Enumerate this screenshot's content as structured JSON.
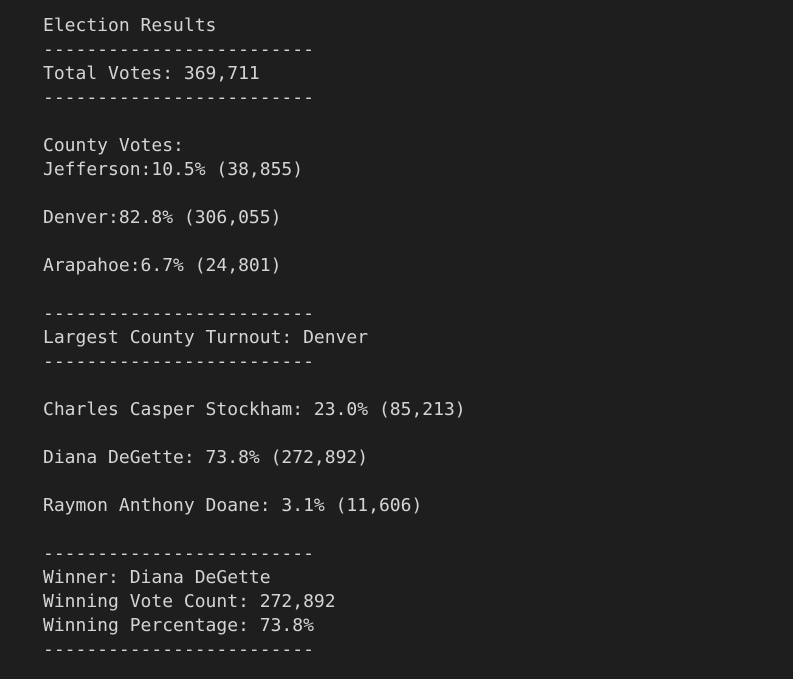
{
  "output": {
    "blocks": [
      {
        "lines": [
          "Election Results",
          "-------------------------",
          "Total Votes: 369,711",
          "-------------------------"
        ]
      },
      {
        "lines": [
          "County Votes:",
          "Jefferson:10.5% (38,855)"
        ]
      },
      {
        "lines": [
          "Denver:82.8% (306,055)"
        ]
      },
      {
        "lines": [
          "Arapahoe:6.7% (24,801)"
        ]
      },
      {
        "lines": [
          "-------------------------",
          "Largest County Turnout: Denver",
          "-------------------------"
        ]
      },
      {
        "lines": [
          "Charles Casper Stockham: 23.0% (85,213)"
        ]
      },
      {
        "lines": [
          "Diana DeGette: 73.8% (272,892)"
        ]
      },
      {
        "lines": [
          "Raymon Anthony Doane: 3.1% (11,606)"
        ]
      },
      {
        "lines": [
          "-------------------------",
          "Winner: Diana DeGette",
          "Winning Vote Count: 272,892",
          "Winning Percentage: 73.8%",
          "-------------------------"
        ]
      }
    ]
  }
}
